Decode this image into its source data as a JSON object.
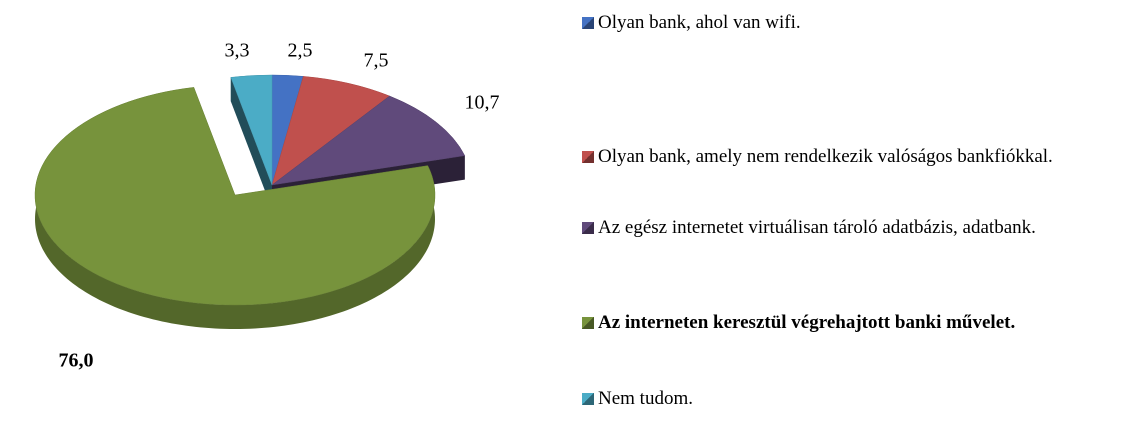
{
  "chart_data": {
    "type": "pie",
    "categories": [
      "Olyan bank, ahol van wifi.",
      "Olyan bank, amely nem rendelkezik valóságos bankfiókkal.",
      "Az egész internetet virtuálisan tároló adatbázis, adatbank.",
      "Az interneten keresztül végrehajtott banki művelet.",
      "Nem tudom."
    ],
    "values": [
      2.5,
      7.5,
      10.7,
      76.0,
      3.3
    ],
    "value_labels": [
      "2,5",
      "7,5",
      "10,7",
      "76,0",
      "3,3"
    ],
    "colors": [
      "#4472c4",
      "#c0504d",
      "#604a7b",
      "#77933c",
      "#4bacc6"
    ],
    "legend": "right"
  }
}
